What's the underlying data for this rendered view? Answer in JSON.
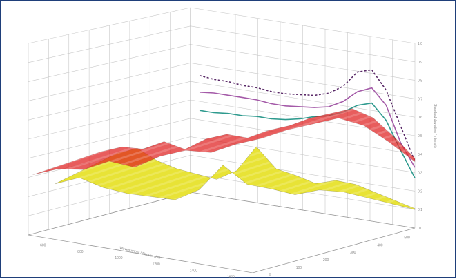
{
  "chart_data": {
    "type": "surface",
    "view": "3d-perspective",
    "grid": true,
    "legend": "none",
    "xlabel": "Wavenumber / Raman shift",
    "zlabel": "Standard deviation / intensity",
    "x_ticks": [
      "600",
      "800",
      "1000",
      "1200",
      "1400",
      "1600"
    ],
    "y_ticks": [
      "0",
      "100",
      "200",
      "300",
      "400",
      "500"
    ],
    "z_ticks": [
      "0.0",
      "0.1",
      "0.2",
      "0.3",
      "0.4",
      "0.5",
      "0.6",
      "0.7",
      "0.8",
      "0.9",
      "1.0"
    ],
    "surfaces": [
      {
        "color": "#e8e336",
        "profile": [
          0.42,
          0.46,
          0.38,
          0.33,
          0.3,
          0.27,
          0.34,
          0.52,
          0.37,
          0.33,
          0.28,
          0.31,
          0.29,
          0.24,
          0.19,
          0.14
        ]
      },
      {
        "color": "#e02020",
        "profile": [
          0.46,
          0.5,
          0.49,
          0.55,
          0.5,
          0.58,
          0.62,
          0.6,
          0.66,
          0.7,
          0.76,
          0.8,
          0.84,
          0.78,
          0.65,
          0.5
        ]
      }
    ],
    "wall_lines": [
      {
        "style": "dashed",
        "color": "#5a2a68",
        "values": [
          0.78,
          0.77,
          0.77,
          0.76,
          0.76,
          0.75,
          0.75,
          0.76,
          0.77,
          0.8,
          0.86,
          0.97,
          1.0,
          0.88,
          0.66,
          0.44
        ]
      },
      {
        "style": "solid",
        "color": "#a45aa8",
        "values": [
          0.67,
          0.68,
          0.68,
          0.68,
          0.68,
          0.67,
          0.67,
          0.68,
          0.69,
          0.71,
          0.76,
          0.84,
          0.88,
          0.78,
          0.55,
          0.4
        ]
      },
      {
        "style": "solid",
        "color": "#2e9a8e",
        "values": [
          0.55,
          0.55,
          0.56,
          0.56,
          0.57,
          0.57,
          0.58,
          0.6,
          0.63,
          0.65,
          0.69,
          0.75,
          0.78,
          0.68,
          0.5,
          0.33
        ]
      }
    ]
  }
}
